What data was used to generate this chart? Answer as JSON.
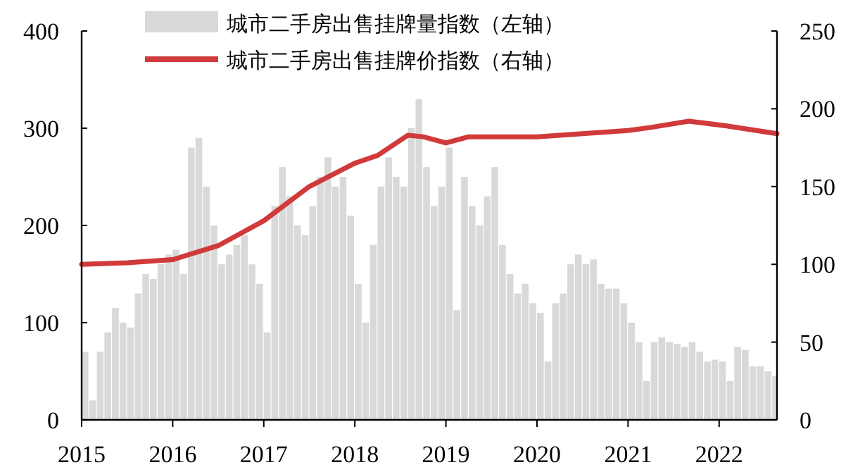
{
  "chart_data": {
    "type": "bar",
    "legend": "top left",
    "grid": false,
    "xlim": [
      "2015-01",
      "2022-08-20"
    ],
    "xticks": [
      "2015",
      "2016",
      "2017",
      "2018",
      "2019",
      "2020",
      "2021",
      "2022"
    ],
    "ylim": [
      0,
      400
    ],
    "yticks": [
      0,
      100,
      200,
      300,
      400
    ],
    "y2lim": [
      0,
      250
    ],
    "y2ticks": [
      0,
      50,
      100,
      150,
      200,
      250
    ],
    "x": [
      "2015-01",
      "2015-02",
      "2015-03",
      "2015-04",
      "2015-05",
      "2015-06",
      "2015-07",
      "2015-08",
      "2015-09",
      "2015-10",
      "2015-11",
      "2015-12",
      "2016-01",
      "2016-02",
      "2016-03",
      "2016-04",
      "2016-05",
      "2016-06",
      "2016-07",
      "2016-08",
      "2016-09",
      "2016-10",
      "2016-11",
      "2016-12",
      "2017-01",
      "2017-02",
      "2017-03",
      "2017-04",
      "2017-05",
      "2017-06",
      "2017-07",
      "2017-08",
      "2017-09",
      "2017-10",
      "2017-11",
      "2017-12",
      "2018-01",
      "2018-02",
      "2018-03",
      "2018-04",
      "2018-05",
      "2018-06",
      "2018-07",
      "2018-08",
      "2018-09",
      "2018-10",
      "2018-11",
      "2018-12",
      "2019-01",
      "2019-02",
      "2019-03",
      "2019-04",
      "2019-05",
      "2019-06",
      "2019-07",
      "2019-08",
      "2019-09",
      "2019-10",
      "2019-11",
      "2019-12",
      "2020-01",
      "2020-02",
      "2020-03",
      "2020-04",
      "2020-05",
      "2020-06",
      "2020-07",
      "2020-08",
      "2020-09",
      "2020-10",
      "2020-11",
      "2020-12",
      "2021-01",
      "2021-02",
      "2021-03",
      "2021-04",
      "2021-05",
      "2021-06",
      "2021-07",
      "2021-08",
      "2021-09",
      "2021-10",
      "2021-11",
      "2021-12",
      "2022-01",
      "2022-02",
      "2022-03",
      "2022-04",
      "2022-05",
      "2022-06",
      "2022-07",
      "2022-08"
    ],
    "series": [
      {
        "name": "城市二手房出售挂牌量指数（左轴）",
        "color": "#d9d9d9",
        "values": [
          70,
          20,
          70,
          90,
          115,
          100,
          95,
          130,
          150,
          145,
          160,
          170,
          175,
          150,
          280,
          290,
          240,
          200,
          160,
          170,
          180,
          190,
          160,
          140,
          90,
          220,
          260,
          230,
          200,
          190,
          220,
          250,
          270,
          240,
          250,
          210,
          140,
          100,
          180,
          240,
          270,
          250,
          240,
          300,
          330,
          260,
          220,
          240,
          280,
          113,
          250,
          220,
          200,
          230,
          260,
          180,
          150,
          130,
          140,
          120,
          110,
          60,
          120,
          130,
          160,
          170,
          160,
          165,
          140,
          135,
          135,
          120,
          100,
          80,
          40,
          80,
          85,
          80,
          78,
          75,
          80,
          70,
          60,
          62,
          60,
          40,
          75,
          72,
          55,
          55,
          50,
          45
        ]
      },
      {
        "name": "城市二手房出售挂牌价指数（右轴）",
        "type": "line",
        "axis": "y2",
        "color": "#d03a3a",
        "x": [
          "2015-01",
          "2015-07",
          "2016-01",
          "2016-07",
          "2017-01",
          "2017-07",
          "2018-01",
          "2018-04",
          "2018-08",
          "2018-10",
          "2019-01",
          "2019-04",
          "2020-01",
          "2020-07",
          "2021-01",
          "2021-04",
          "2021-09",
          "2022-02",
          "2022-08-20"
        ],
        "values": [
          100,
          101,
          103,
          112,
          128,
          150,
          165,
          170,
          183,
          182,
          178,
          182,
          182,
          184,
          186,
          188,
          192,
          189,
          184
        ]
      }
    ]
  }
}
